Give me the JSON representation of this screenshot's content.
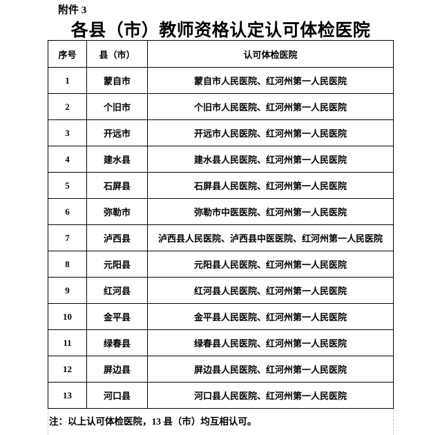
{
  "page": {
    "attachment_label": "附件 3",
    "title": "各县（市）教师资格认定认可体检医院",
    "note": "注：以上认可体检医院，13 县（市）均互相认可。",
    "text_color": "#000000",
    "background_color": "#ffffff",
    "boundary_dash_color": "#c9c9c9"
  },
  "table": {
    "columns": [
      "序号",
      "县（市）",
      "认可体检医院"
    ],
    "rows": [
      {
        "no": "1",
        "county": "蒙自市",
        "hospitals": "蒙自市人民医院、红河州第一人民医院"
      },
      {
        "no": "2",
        "county": "个旧市",
        "hospitals": "个旧市人民医院、红河州第一人民医院"
      },
      {
        "no": "3",
        "county": "开远市",
        "hospitals": "开远市人民医院、红河州第一人民医院"
      },
      {
        "no": "4",
        "county": "建水县",
        "hospitals": "建水县人民医院、红河州第一人民医院"
      },
      {
        "no": "5",
        "county": "石屏县",
        "hospitals": "石屏县人民医院、红河州第一人民医院"
      },
      {
        "no": "6",
        "county": "弥勒市",
        "hospitals": "弥勒市中医医院、红河州第一人民医院"
      },
      {
        "no": "7",
        "county": "泸西县",
        "hospitals": "泸西县人民医院、泸西县中医医院、红河州第一人民医院"
      },
      {
        "no": "8",
        "county": "元阳县",
        "hospitals": "元阳县人民医院、红河州第一人民医院"
      },
      {
        "no": "9",
        "county": "红河县",
        "hospitals": "红河县人民医院、红河州第一人民医院"
      },
      {
        "no": "10",
        "county": "金平县",
        "hospitals": "金平县人民医院、红河州第一人民医院"
      },
      {
        "no": "11",
        "county": "绿春县",
        "hospitals": "绿春县人民医院、红河州第一人民医院"
      },
      {
        "no": "12",
        "county": "屏边县",
        "hospitals": "屏边县人民医院、红河州第一人民医院"
      },
      {
        "no": "13",
        "county": "河口县",
        "hospitals": "河口县人民医院、红河州第一人民医院"
      }
    ]
  }
}
